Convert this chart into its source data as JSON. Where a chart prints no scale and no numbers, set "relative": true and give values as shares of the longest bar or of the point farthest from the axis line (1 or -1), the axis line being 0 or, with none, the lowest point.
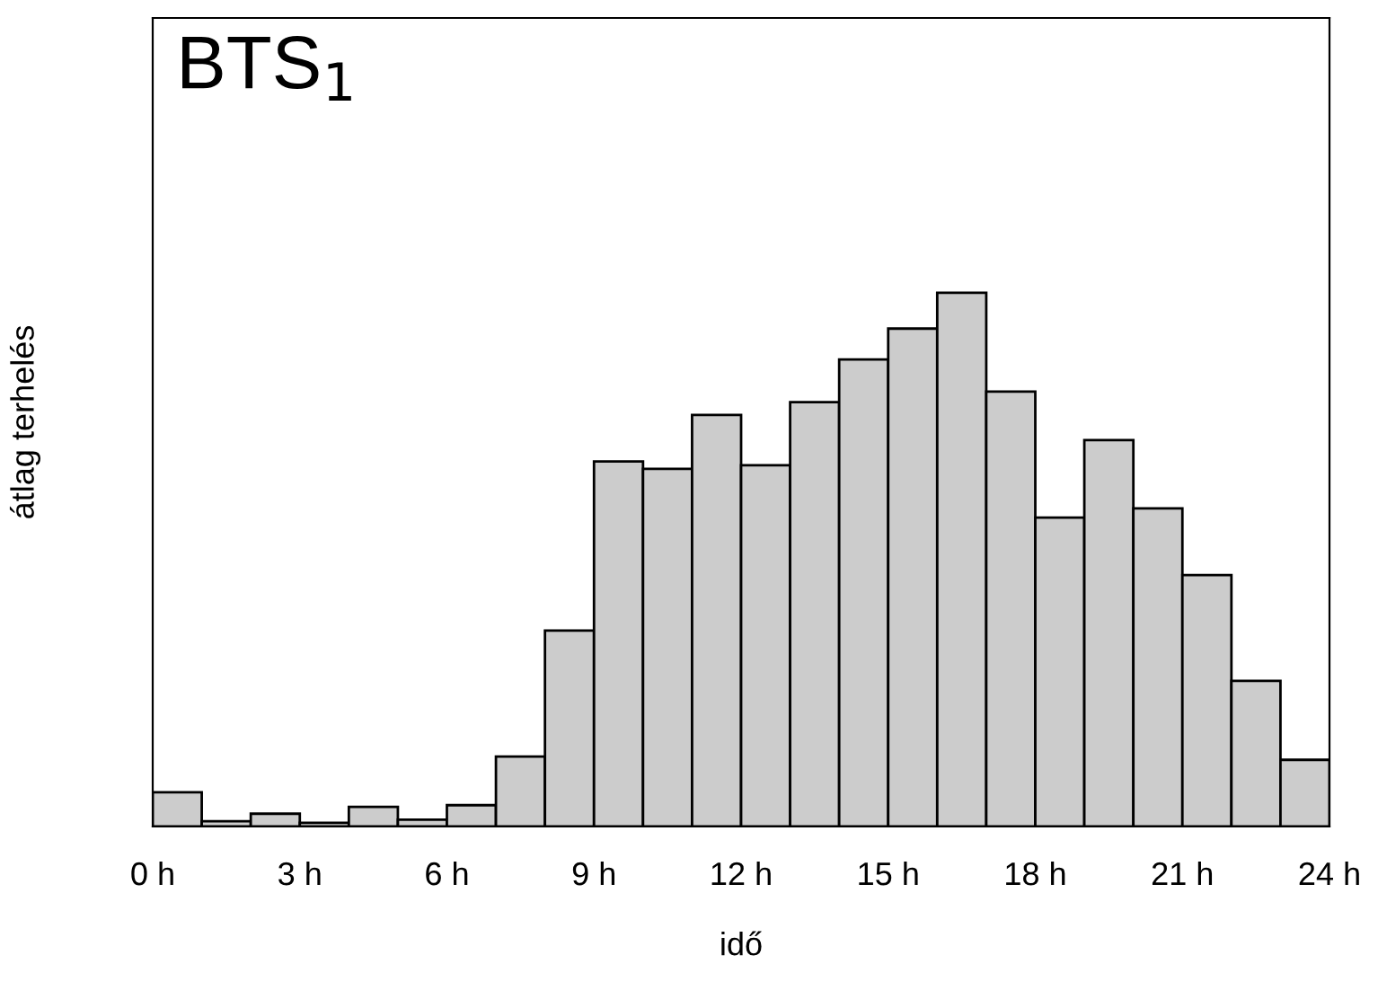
{
  "chart_data": {
    "type": "bar",
    "title": "BTS$_{1}$",
    "xlabel": "idő",
    "ylabel": "átlag terhelés",
    "relative": true,
    "color": "#cccccc",
    "x": [
      0.5,
      1.5,
      2.5,
      3.5,
      4.5,
      5.5,
      6.5,
      7.5,
      8.5,
      9.5,
      10.5,
      11.5,
      12.5,
      13.5,
      14.5,
      15.5,
      16.5,
      17.5,
      18.5,
      19.5,
      20.5,
      21.5,
      22.5,
      23.5
    ],
    "values": [
      0.064,
      0.01,
      0.024,
      0.007,
      0.037,
      0.013,
      0.04,
      0.131,
      0.367,
      0.684,
      0.67,
      0.771,
      0.677,
      0.795,
      0.875,
      0.933,
      1,
      0.815,
      0.579,
      0.724,
      0.596,
      0.471,
      0.273,
      0.125
    ],
    "xlim": [
      0,
      24
    ],
    "xticks": [
      {
        "value": 0,
        "label": "0 h"
      },
      {
        "value": 3,
        "label": "3 h"
      },
      {
        "value": 6,
        "label": "6 h"
      },
      {
        "value": 9,
        "label": "9 h"
      },
      {
        "value": 12,
        "label": "12 h"
      },
      {
        "value": 15,
        "label": "15 h"
      },
      {
        "value": 18,
        "label": "18 h"
      },
      {
        "value": 21,
        "label": "21 h"
      },
      {
        "value": 24,
        "label": "24 h"
      }
    ]
  }
}
